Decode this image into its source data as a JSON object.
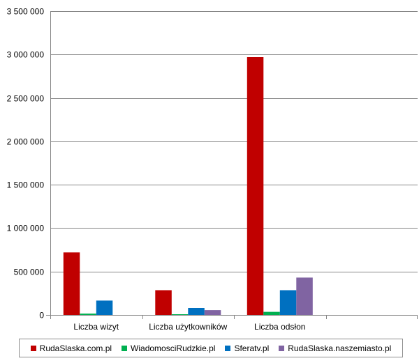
{
  "chart_data": {
    "type": "bar",
    "categories": [
      "Liczba wizyt",
      "Liczba użytkowników",
      "Liczba odsłon",
      ""
    ],
    "series": [
      {
        "name": "RudaSlaska.com.pl",
        "color": "#c00000",
        "values": [
          720000,
          285000,
          2970000,
          null
        ]
      },
      {
        "name": "WiadomosciRudzkie.pl",
        "color": "#00b050",
        "values": [
          15000,
          8000,
          35000,
          null
        ]
      },
      {
        "name": "Sferatv.pl",
        "color": "#0070c0",
        "values": [
          165000,
          80000,
          285000,
          null
        ]
      },
      {
        "name": "RudaSlaska.naszemiasto.pl",
        "color": "#8064a2",
        "values": [
          null,
          55000,
          430000,
          null
        ]
      }
    ],
    "yticks": [
      "0",
      "500 000",
      "1 000 000",
      "1 500 000",
      "2 000 000",
      "2 500 000",
      "3 000 000",
      "3 500 000"
    ],
    "ylim": [
      0,
      3500000
    ],
    "grid": true,
    "legend_position": "bottom",
    "title": "",
    "xlabel": "",
    "ylabel": ""
  }
}
